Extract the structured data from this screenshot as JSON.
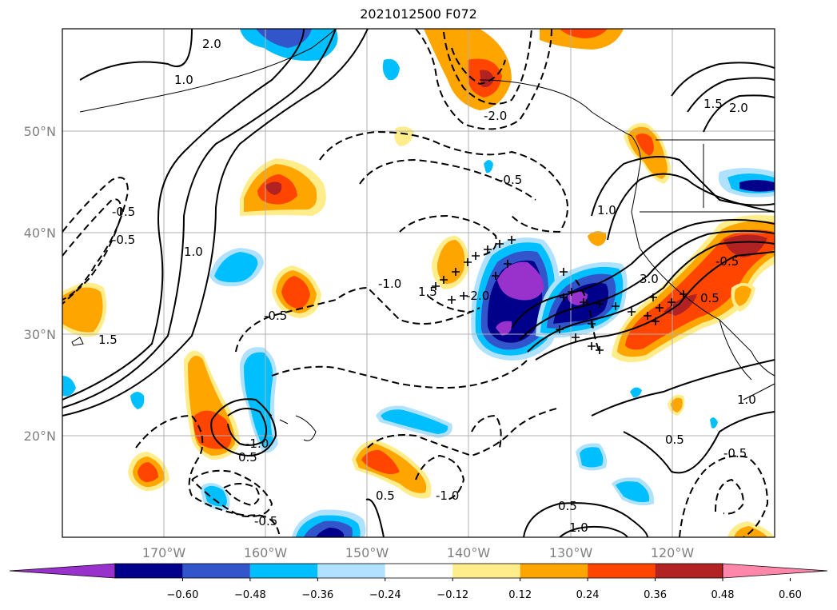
{
  "title": "2021012500 F072",
  "map": {
    "lat_labels": [
      "50°N",
      "40°N",
      "30°N",
      "20°N"
    ],
    "lon_labels": [
      "170°W",
      "160°W",
      "150°W",
      "140°W",
      "130°W",
      "120°W"
    ],
    "contour_labels": [
      "2.0",
      "1.0",
      "-0.5",
      "-0.5",
      "1.0",
      "-2.0",
      "-0.5",
      "1.5",
      "-0.5",
      "-1.0",
      "1.5",
      "-2.0",
      "1.0",
      "3.0",
      "0.5",
      "-0.5",
      "0.5",
      "-1.0",
      "0.5",
      "-1.0",
      "-0.5",
      "0.5",
      "1.0",
      "-0.5",
      "0.5",
      "1.0",
      "1.5",
      "2.0"
    ],
    "colors": {
      "grid": "#b0b0b0",
      "coast": "#000000",
      "contour": "#000000"
    }
  },
  "colorbar": {
    "ticks": [
      "−0.60",
      "−0.48",
      "−0.36",
      "−0.24",
      "−0.12",
      "0.12",
      "0.24",
      "0.36",
      "0.48",
      "0.60"
    ],
    "colors": [
      "#9932CC",
      "#00008B",
      "#3355CC",
      "#00BFFF",
      "#B0E2FF",
      "#FFFFFF",
      "#FFEC8B",
      "#FFA500",
      "#FF4500",
      "#B22222",
      "#FF88AA"
    ]
  }
}
